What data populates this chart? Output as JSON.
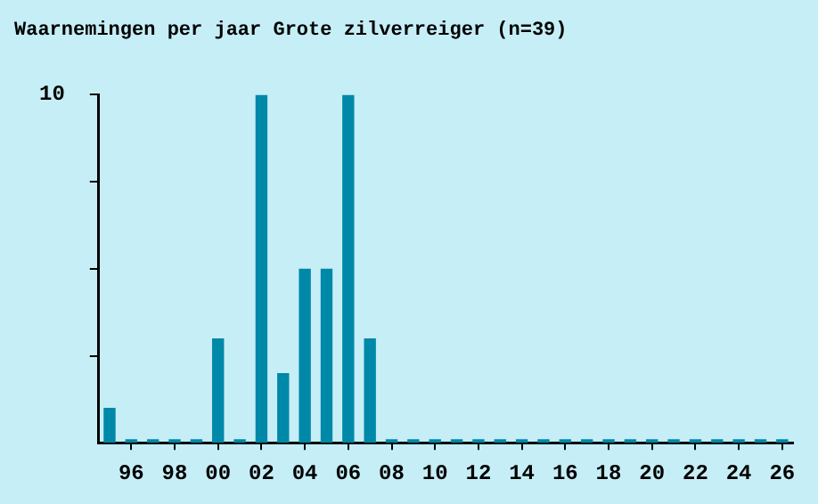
{
  "chart_data": {
    "type": "bar",
    "title": "Waarnemingen per jaar Grote zilverreiger (n=39)",
    "categories": [
      null,
      "96",
      null,
      "98",
      null,
      "00",
      null,
      "02",
      null,
      "04",
      null,
      "06",
      null,
      "08",
      null,
      "10",
      null,
      "12",
      null,
      "14",
      null,
      "16",
      null,
      "18",
      null,
      "20",
      null,
      "22",
      null,
      "24",
      null,
      "26"
    ],
    "values": [
      1,
      0,
      0,
      0,
      0,
      3,
      0,
      10,
      2,
      5,
      5,
      10,
      3,
      0,
      0,
      0,
      0,
      0,
      0,
      0,
      0,
      0,
      0,
      0,
      0,
      0,
      0,
      0,
      0,
      0,
      0,
      0
    ],
    "color": "#0088a8",
    "ylim": [
      0,
      10
    ],
    "yticks": [
      {
        "value": 2.5,
        "label": null
      },
      {
        "value": 5,
        "label": null
      },
      {
        "value": 7.5,
        "label": null
      },
      10
    ]
  }
}
